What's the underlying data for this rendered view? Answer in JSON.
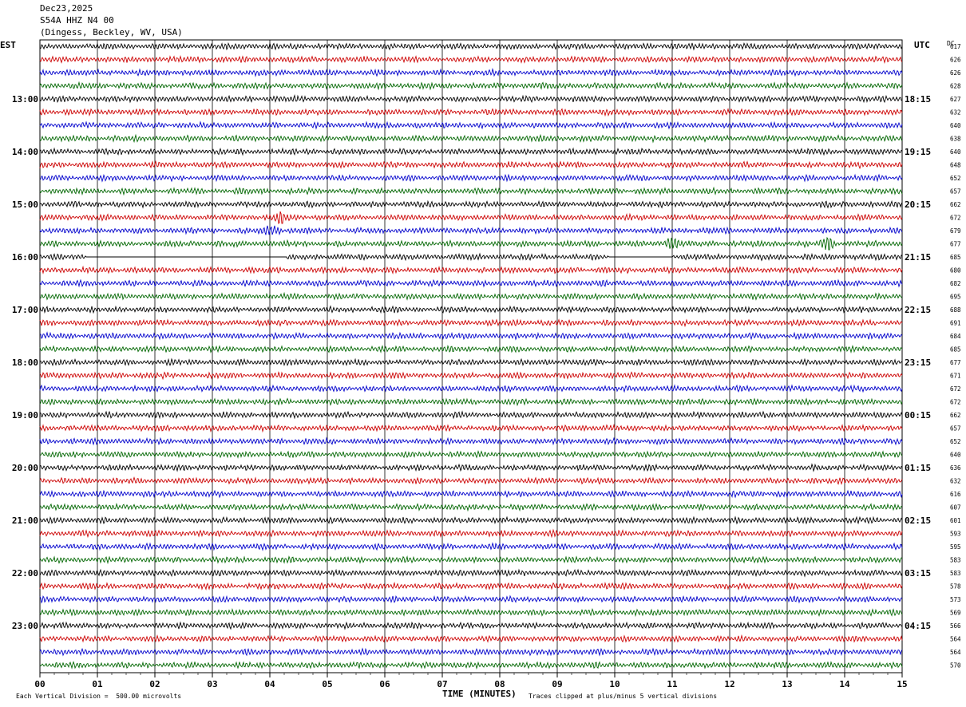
{
  "header": {
    "date": "Dec23,2025",
    "station": "S54A HHZ N4 00",
    "location": "(Dingess, Beckley, WV, USA)"
  },
  "left_label": "EST",
  "right_label": "UTC",
  "dc_label": "DC",
  "footer": {
    "scale_note": "Each Vertical Division =  500.00 microvolts",
    "clip_note": "Traces clipped at plus/minus 5 vertical divisions"
  },
  "colors": {
    "trace_cycle": [
      "#000000",
      "#cc0000",
      "#0000cc",
      "#006600"
    ],
    "grid": "#000000"
  },
  "chart_data": {
    "type": "line",
    "xlabel": "TIME (MINUTES)",
    "x_ticks": [
      "00",
      "01",
      "02",
      "03",
      "04",
      "05",
      "06",
      "07",
      "08",
      "09",
      "10",
      "11",
      "12",
      "13",
      "14",
      "15"
    ],
    "xlim": [
      0,
      15
    ],
    "est_hour_labels": [
      "13:00",
      "14:00",
      "15:00",
      "16:00",
      "17:00",
      "18:00",
      "19:00",
      "20:00",
      "21:00",
      "22:00",
      "23:00"
    ],
    "utc_hour_labels": [
      "18:15",
      "19:15",
      "20:15",
      "21:15",
      "22:15",
      "23:15",
      "00:15",
      "01:15",
      "02:15",
      "03:15",
      "04:15"
    ],
    "traces_per_hour": 4,
    "dc_offsets": [
      617,
      626,
      626,
      628,
      627,
      632,
      640,
      638,
      640,
      648,
      652,
      657,
      662,
      672,
      679,
      677,
      685,
      680,
      682,
      695,
      688,
      691,
      684,
      685,
      677,
      671,
      672,
      672,
      662,
      657,
      652,
      640,
      636,
      632,
      616,
      607,
      601,
      593,
      595,
      583,
      583,
      578,
      573,
      569,
      566,
      564,
      564,
      570
    ],
    "gaps": [
      {
        "trace_index": 16,
        "from_minute": 0.8,
        "to_minute": 4.3
      },
      {
        "trace_index": 16,
        "from_minute": 9.9,
        "to_minute": 11.0
      }
    ],
    "events": [
      {
        "trace_index": 13,
        "minute": 4.2
      },
      {
        "trace_index": 14,
        "minute": 4.05
      },
      {
        "trace_index": 15,
        "minute": 11.0
      },
      {
        "trace_index": 15,
        "minute": 13.7
      }
    ]
  }
}
